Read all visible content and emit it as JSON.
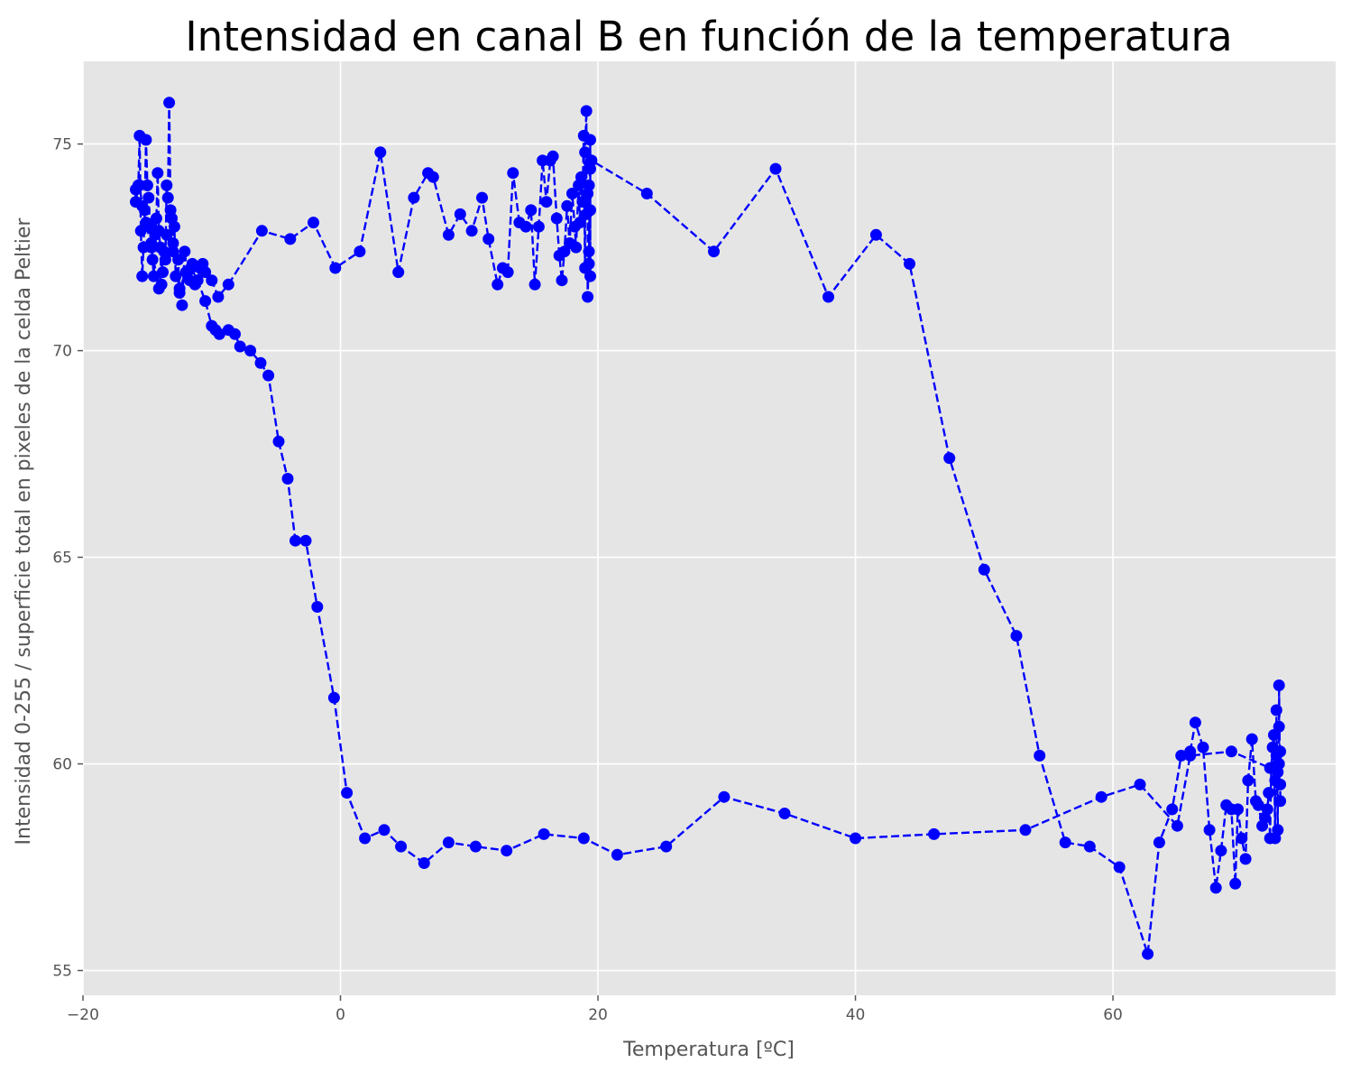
{
  "chart_data": {
    "type": "line",
    "title": "Intensidad en canal B en función de la temperatura",
    "xlabel": "Temperatura [ºC]",
    "ylabel": "Intensidad 0-255 / superficie total en pixeles de la celda Peltier",
    "xlim": [
      -20,
      77.3
    ],
    "ylim": [
      54.4,
      77.0
    ],
    "xticks": [
      -20,
      0,
      20,
      40,
      60
    ],
    "yticks": [
      55,
      60,
      65,
      70,
      75
    ],
    "grid": true,
    "colors": {
      "background": "#e5e5e5",
      "grid": "#ffffff",
      "series": "#0000ff"
    },
    "series": [
      {
        "line_style": "dashed",
        "marker": "circle",
        "x": [
          -15.9,
          -15.9,
          -15.7,
          -15.6,
          -15.5,
          -15.4,
          -15.3,
          -15.2,
          -15.1,
          -15.0,
          -14.9,
          -14.8,
          -14.7,
          -14.6,
          -14.5,
          -14.4,
          -14.3,
          -14.2,
          -14.1,
          -14.0,
          -13.9,
          -13.8,
          -13.7,
          -13.6,
          -13.5,
          -13.4,
          -13.3,
          -13.2,
          -13.1,
          -13.0,
          -12.9,
          -12.8,
          -12.6,
          -12.5,
          -12.3,
          -12.1,
          -11.9,
          -11.7,
          -11.5,
          -11.3,
          -11.1,
          -10.9,
          -10.7,
          -10.5,
          -10.0,
          -9.5,
          -8.7,
          -6.1,
          -3.9,
          -2.1,
          -0.4,
          1.5,
          3.1,
          4.5,
          5.7,
          6.8,
          7.2,
          8.4,
          9.3,
          10.2,
          11.0,
          11.5,
          12.2,
          12.6,
          13.0,
          13.4,
          13.9,
          14.4,
          14.8,
          15.1,
          15.4,
          15.7,
          16.0,
          16.3,
          16.5,
          16.8,
          17.0,
          17.2,
          17.4,
          17.6,
          17.8,
          18.0,
          18.2,
          18.3,
          18.5,
          18.6,
          18.7,
          18.8,
          18.9,
          19.0,
          19.0,
          19.1,
          19.1,
          19.2,
          19.2,
          19.3,
          19.3,
          19.3,
          19.4,
          19.4,
          19.4,
          19.4,
          19.5,
          23.8,
          29.0,
          33.8,
          37.9,
          41.6,
          44.2,
          47.3,
          50.0,
          52.5,
          54.3,
          56.3,
          58.2,
          60.5,
          62.7,
          63.6,
          64.6,
          65.3,
          66.0,
          66.4,
          67.0,
          67.5,
          68.0,
          68.4,
          68.8,
          69.2,
          69.5,
          69.7,
          70.0,
          70.3,
          70.5,
          70.8,
          71.1,
          71.3,
          71.6,
          71.8,
          72.0,
          72.1,
          72.2,
          72.3,
          72.4,
          72.5,
          72.6,
          72.6,
          72.7,
          72.7,
          72.8,
          72.8,
          72.9,
          72.9,
          72.9,
          73.0,
          73.0,
          73.0,
          72.2,
          69.2,
          66.0,
          65.0,
          62.1,
          59.1,
          53.2,
          46.1,
          40.0,
          34.5,
          29.8,
          25.3,
          21.5,
          18.9,
          15.8,
          12.9,
          10.5,
          8.4,
          6.5,
          4.7,
          3.4,
          1.9,
          0.5,
          -0.5,
          -1.8,
          -2.7,
          -3.5,
          -4.1,
          -4.8,
          -5.6,
          -6.2,
          -7.0,
          -7.8,
          -8.2,
          -8.7,
          -9.4,
          -9.7,
          -10.0,
          -10.5,
          -11.1,
          -11.6,
          -12.0,
          -12.5,
          -13.0,
          -13.5,
          -14.1,
          -14.7,
          -15.1,
          -15.4,
          -15.6
        ],
        "y": [
          73.9,
          73.6,
          74.0,
          75.2,
          72.9,
          71.8,
          72.5,
          73.4,
          75.1,
          74.0,
          73.7,
          73.0,
          72.6,
          72.2,
          71.8,
          72.8,
          73.2,
          74.3,
          72.9,
          72.5,
          71.6,
          71.9,
          72.4,
          72.2,
          74.0,
          73.7,
          76.0,
          73.4,
          73.2,
          72.6,
          73.0,
          71.8,
          72.2,
          71.4,
          71.1,
          72.4,
          71.9,
          71.7,
          72.1,
          71.6,
          71.7,
          72.0,
          72.1,
          71.9,
          71.7,
          71.3,
          71.6,
          72.9,
          72.7,
          73.1,
          72.0,
          72.4,
          74.8,
          71.9,
          73.7,
          74.3,
          74.2,
          72.8,
          73.3,
          72.9,
          73.7,
          72.7,
          71.6,
          72.0,
          71.9,
          74.3,
          73.1,
          73.0,
          73.4,
          71.6,
          73.0,
          74.6,
          73.6,
          74.6,
          74.7,
          73.2,
          72.3,
          71.7,
          72.4,
          73.5,
          72.6,
          73.8,
          73.0,
          72.5,
          74.0,
          73.1,
          74.2,
          73.6,
          75.2,
          72.0,
          74.8,
          75.8,
          73.3,
          73.8,
          71.3,
          72.4,
          74.0,
          72.1,
          75.1,
          73.4,
          71.8,
          74.4,
          74.6,
          73.8,
          72.4,
          74.4,
          71.3,
          72.8,
          72.1,
          67.4,
          64.7,
          63.1,
          60.2,
          58.1,
          58.0,
          57.5,
          55.4,
          58.1,
          58.9,
          60.2,
          60.3,
          61.0,
          60.4,
          58.4,
          57.0,
          57.9,
          59.0,
          58.9,
          57.1,
          58.9,
          58.2,
          57.7,
          59.6,
          60.6,
          59.1,
          59.0,
          58.5,
          58.7,
          58.9,
          59.3,
          58.2,
          59.9,
          60.4,
          60.7,
          58.2,
          59.6,
          60.2,
          61.3,
          58.4,
          59.8,
          60.0,
          60.9,
          61.9,
          59.1,
          59.5,
          60.3,
          59.9,
          60.3,
          60.2,
          58.5,
          59.5,
          59.2,
          58.4,
          58.3,
          58.2,
          58.8,
          59.2,
          58.0,
          57.8,
          58.2,
          58.3,
          57.9,
          58.0,
          58.1,
          57.6,
          58.0,
          58.4,
          58.2,
          59.3,
          61.6,
          63.8,
          65.4,
          65.4,
          66.9,
          67.8,
          69.4,
          69.7,
          70.0,
          70.1,
          70.4,
          70.5,
          70.4,
          70.5,
          70.6,
          71.2,
          71.7,
          72.0,
          71.9,
          71.5,
          72.4,
          72.8,
          71.5,
          72.5,
          73.1,
          73.5,
          74.0
        ]
      }
    ]
  }
}
